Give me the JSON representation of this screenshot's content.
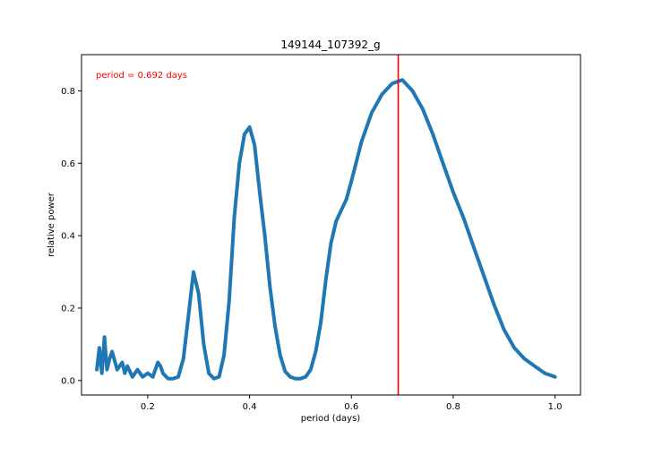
{
  "chart_data": {
    "type": "line",
    "title": "149144_107392_g",
    "xlabel": "period (days)",
    "ylabel": "relative power",
    "xlim": [
      0.07,
      1.05
    ],
    "ylim": [
      -0.04,
      0.9
    ],
    "x_ticks": [
      0.2,
      0.4,
      0.6,
      0.8,
      1.0
    ],
    "x_tick_labels": [
      "0.2",
      "0.4",
      "0.6",
      "0.8",
      "1.0"
    ],
    "y_ticks": [
      0.0,
      0.2,
      0.4,
      0.6,
      0.8
    ],
    "y_tick_labels": [
      "0.0",
      "0.2",
      "0.4",
      "0.6",
      "0.8"
    ],
    "grid": false,
    "line_color": "#1f77b4",
    "series": [
      {
        "x": [
          0.1,
          0.105,
          0.11,
          0.115,
          0.12,
          0.125,
          0.13,
          0.14,
          0.15,
          0.155,
          0.16,
          0.17,
          0.18,
          0.19,
          0.2,
          0.21,
          0.215,
          0.22,
          0.225,
          0.23,
          0.24,
          0.25,
          0.26,
          0.27,
          0.28,
          0.29,
          0.3,
          0.31,
          0.32,
          0.33,
          0.34,
          0.35,
          0.36,
          0.37,
          0.38,
          0.39,
          0.4,
          0.41,
          0.42,
          0.43,
          0.44,
          0.45,
          0.46,
          0.47,
          0.48,
          0.49,
          0.5,
          0.51,
          0.52,
          0.53,
          0.54,
          0.55,
          0.56,
          0.57,
          0.58,
          0.59,
          0.6,
          0.62,
          0.64,
          0.66,
          0.68,
          0.7,
          0.72,
          0.74,
          0.76,
          0.78,
          0.8,
          0.82,
          0.84,
          0.86,
          0.88,
          0.9,
          0.92,
          0.94,
          0.96,
          0.98,
          1.0
        ],
        "y": [
          0.03,
          0.09,
          0.02,
          0.12,
          0.03,
          0.06,
          0.08,
          0.03,
          0.05,
          0.02,
          0.04,
          0.01,
          0.03,
          0.01,
          0.02,
          0.01,
          0.03,
          0.05,
          0.04,
          0.02,
          0.005,
          0.005,
          0.01,
          0.06,
          0.18,
          0.3,
          0.24,
          0.1,
          0.02,
          0.005,
          0.01,
          0.07,
          0.22,
          0.45,
          0.6,
          0.68,
          0.7,
          0.65,
          0.52,
          0.4,
          0.26,
          0.15,
          0.07,
          0.025,
          0.01,
          0.005,
          0.005,
          0.01,
          0.03,
          0.08,
          0.16,
          0.28,
          0.38,
          0.44,
          0.47,
          0.5,
          0.55,
          0.66,
          0.74,
          0.79,
          0.82,
          0.83,
          0.8,
          0.75,
          0.68,
          0.6,
          0.52,
          0.45,
          0.37,
          0.29,
          0.21,
          0.14,
          0.09,
          0.06,
          0.04,
          0.02,
          0.01
        ]
      }
    ],
    "vline": {
      "x": 0.692,
      "color": "#ff0000"
    },
    "annotation": {
      "text": "period = 0.692 days",
      "color": "#ff0000"
    }
  }
}
